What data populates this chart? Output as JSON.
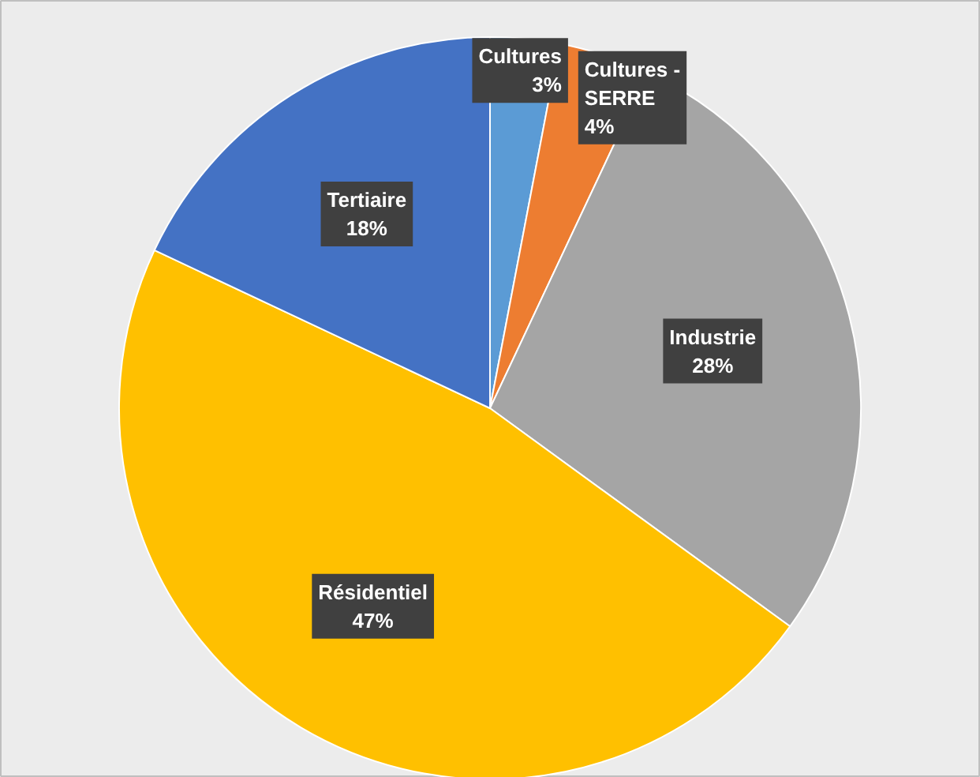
{
  "chart_data": {
    "type": "pie",
    "categories": [
      "Cultures",
      "Cultures - SERRE",
      "Industrie",
      "Résidentiel",
      "Tertiaire"
    ],
    "values": [
      3,
      4,
      28,
      47,
      18
    ],
    "colors": [
      "#5b9bd5",
      "#ed7d31",
      "#a5a5a5",
      "#ffc000",
      "#4472c4"
    ],
    "value_labels": [
      "3%",
      "4%",
      "28%",
      "47%",
      "18%"
    ]
  }
}
